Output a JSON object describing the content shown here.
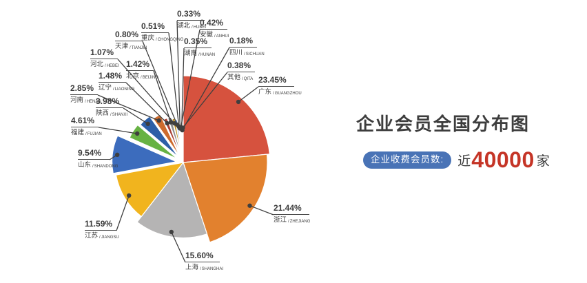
{
  "page": {
    "background": "#ffffff"
  },
  "chart_data": {
    "type": "pie",
    "title": "企业会员全国分布图",
    "legend_position": "none",
    "label_format": "percent + region name + pinyin",
    "total_percent": 100.0,
    "slices": [
      {
        "name": "广东",
        "pinyin": "GUANGZHOU",
        "value": 23.45,
        "label": "23.45%",
        "color": "#d6523e"
      },
      {
        "name": "浙江",
        "pinyin": "ZHEJIANG",
        "value": 21.44,
        "label": "21.44%",
        "color": "#e2812e"
      },
      {
        "name": "上海",
        "pinyin": "SHANGHAI",
        "value": 15.6,
        "label": "15.60%",
        "color": "#b5b4b4"
      },
      {
        "name": "江苏",
        "pinyin": "JIANGSU",
        "value": 11.59,
        "label": "11.59%",
        "color": "#f1b41e"
      },
      {
        "name": "山东",
        "pinyin": "SHANDONG",
        "value": 9.54,
        "label": "9.54%",
        "color": "#3c6cbd"
      },
      {
        "name": "福建",
        "pinyin": "FUJIAN",
        "value": 4.61,
        "label": "4.61%",
        "color": "#67b243"
      },
      {
        "name": "陕西",
        "pinyin": "SHANXI",
        "value": 3.98,
        "label": "3.98%",
        "color": "#2d5fa7"
      },
      {
        "name": "河南",
        "pinyin": "HENAN",
        "value": 2.85,
        "label": "2.85%",
        "color": "#cd6b2d"
      },
      {
        "name": "辽宁",
        "pinyin": "LIAONING",
        "value": 1.48,
        "label": "1.48%",
        "color": "#a94136"
      },
      {
        "name": "北京",
        "pinyin": "BEIJING",
        "value": 1.42,
        "label": "1.42%",
        "color": "#8c8c8c"
      },
      {
        "name": "河北",
        "pinyin": "HEBEI",
        "value": 1.07,
        "label": "1.07%",
        "color": "#bf8f1c"
      },
      {
        "name": "天津",
        "pinyin": "TIANJIN",
        "value": 0.8,
        "label": "0.80%",
        "color": "#4e7fcb"
      },
      {
        "name": "重庆",
        "pinyin": "CHONGQING",
        "value": 0.51,
        "label": "0.51%",
        "color": "#46a24c"
      },
      {
        "name": "湖北",
        "pinyin": "HUBEI",
        "value": 0.33,
        "label": "0.33%",
        "color": "#de9a83"
      },
      {
        "name": "安徽",
        "pinyin": "ANHUI",
        "value": 0.42,
        "label": "0.42%",
        "color": "#d9b38c"
      },
      {
        "name": "湖南",
        "pinyin": "HUNAN",
        "value": 0.35,
        "label": "0.35%",
        "color": "#cfcfcf"
      },
      {
        "name": "四川",
        "pinyin": "SICHUAN",
        "value": 0.18,
        "label": "0.18%",
        "color": "#e6c97a"
      },
      {
        "name": "其他",
        "pinyin": "QITA",
        "value": 0.38,
        "label": "0.38%",
        "color": "#8fc2bb"
      }
    ]
  },
  "stat": {
    "badge_label": "企业收费会员数:",
    "badge_color": "#4973b6",
    "prefix": "近",
    "value": "40000",
    "value_color": "#c53527",
    "suffix": "家"
  }
}
